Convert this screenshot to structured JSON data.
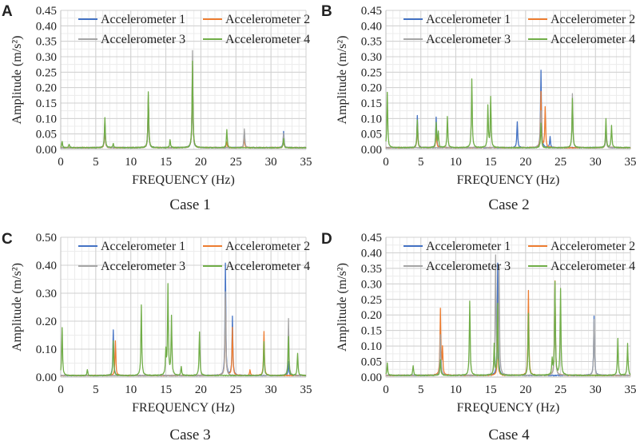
{
  "chart_data": [
    {
      "panel_label": "A",
      "caption": "Case 1",
      "type": "line",
      "xlabel": "FREQUENCY (Hz)",
      "ylabel": "Amplitude (m/s²)",
      "xlim": [
        0,
        35
      ],
      "ylim": [
        0,
        0.45
      ],
      "xticks": [
        0,
        5,
        10,
        15,
        20,
        25,
        30,
        35
      ],
      "yticks": [
        0.0,
        0.05,
        0.1,
        0.15,
        0.2,
        0.25,
        0.3,
        0.35,
        0.4,
        0.45
      ],
      "ytick_decimals": 2,
      "grid": true,
      "legend": [
        "Accelerometer 1",
        "Accelerometer 2",
        "Accelerometer 3",
        "Accelerometer 4"
      ],
      "series": [
        {
          "name": "Accelerometer 1",
          "color": "#4472C4",
          "peaks": [
            [
              6.3,
              0.08
            ],
            [
              12.5,
              0.15
            ],
            [
              18.8,
              0.25
            ],
            [
              26.2,
              0.05
            ],
            [
              31.8,
              0.052
            ]
          ]
        },
        {
          "name": "Accelerometer 2",
          "color": "#ED7D31",
          "peaks": [
            [
              6.3,
              0.07
            ],
            [
              12.5,
              0.16
            ],
            [
              18.8,
              0.26
            ],
            [
              23.7,
              0.02
            ],
            [
              26.2,
              0.03
            ],
            [
              31.8,
              0.03
            ]
          ]
        },
        {
          "name": "Accelerometer 3",
          "color": "#A5A5A5",
          "peaks": [
            [
              6.3,
              0.09
            ],
            [
              12.5,
              0.17
            ],
            [
              18.8,
              0.315
            ],
            [
              26.2,
              0.062
            ],
            [
              31.8,
              0.045
            ]
          ]
        },
        {
          "name": "Accelerometer 4",
          "color": "#70AD47",
          "peaks": [
            [
              0.2,
              0.02
            ],
            [
              1.2,
              0.012
            ],
            [
              6.3,
              0.097
            ],
            [
              7.5,
              0.012
            ],
            [
              12.5,
              0.18
            ],
            [
              15.6,
              0.025
            ],
            [
              18.8,
              0.28
            ],
            [
              23.7,
              0.058
            ],
            [
              31.8,
              0.03
            ]
          ]
        }
      ]
    },
    {
      "panel_label": "B",
      "caption": "Case 2",
      "type": "line",
      "xlabel": "FREQUENCY (Hz)",
      "ylabel": "Amplitude (m/s²)",
      "xlim": [
        0,
        35
      ],
      "ylim": [
        0,
        0.45
      ],
      "xticks": [
        0,
        5,
        10,
        15,
        20,
        25,
        30,
        35
      ],
      "yticks": [
        0.0,
        0.05,
        0.1,
        0.15,
        0.2,
        0.25,
        0.3,
        0.35,
        0.4,
        0.45
      ],
      "ytick_decimals": 2,
      "grid": true,
      "legend": [
        "Accelerometer 1",
        "Accelerometer 2",
        "Accelerometer 3",
        "Accelerometer 4"
      ],
      "series": [
        {
          "name": "Accelerometer 1",
          "color": "#4472C4",
          "peaks": [
            [
              4.5,
              0.103
            ],
            [
              7.2,
              0.098
            ],
            [
              18.8,
              0.085
            ],
            [
              22.2,
              0.252
            ],
            [
              23.5,
              0.035
            ],
            [
              31.5,
              0.07
            ]
          ]
        },
        {
          "name": "Accelerometer 2",
          "color": "#ED7D31",
          "peaks": [
            [
              4.5,
              0.08
            ],
            [
              7.2,
              0.06
            ],
            [
              22.2,
              0.18
            ],
            [
              22.8,
              0.13
            ],
            [
              31.5,
              0.06
            ]
          ]
        },
        {
          "name": "Accelerometer 3",
          "color": "#A5A5A5",
          "peaks": [
            [
              22.2,
              0.12
            ],
            [
              26.7,
              0.175
            ],
            [
              31.5,
              0.05
            ]
          ]
        },
        {
          "name": "Accelerometer 4",
          "color": "#70AD47",
          "peaks": [
            [
              0.2,
              0.18
            ],
            [
              4.5,
              0.09
            ],
            [
              7.2,
              0.08
            ],
            [
              7.5,
              0.05
            ],
            [
              8.8,
              0.1
            ],
            [
              12.3,
              0.222
            ],
            [
              14.6,
              0.133
            ],
            [
              15.0,
              0.162
            ],
            [
              22.2,
              0.08
            ],
            [
              26.7,
              0.16
            ],
            [
              31.5,
              0.095
            ],
            [
              32.3,
              0.072
            ]
          ]
        }
      ]
    },
    {
      "panel_label": "C",
      "caption": "Case 3",
      "type": "line",
      "xlabel": "FREQUENCY (Hz)",
      "ylabel": "Amplitude (m/s²)",
      "xlim": [
        0,
        35
      ],
      "ylim": [
        0,
        0.5
      ],
      "xticks": [
        0,
        5,
        10,
        15,
        20,
        25,
        30,
        35
      ],
      "yticks": [
        0.0,
        0.1,
        0.2,
        0.3,
        0.4,
        0.5
      ],
      "ytick_decimals": 2,
      "grid": true,
      "legend": [
        "Accelerometer 1",
        "Accelerometer 2",
        "Accelerometer 3",
        "Accelerometer 4"
      ],
      "series": [
        {
          "name": "Accelerometer 1",
          "color": "#4472C4",
          "peaks": [
            [
              7.5,
              0.163
            ],
            [
              23.5,
              0.4
            ],
            [
              24.5,
              0.21
            ],
            [
              32.5,
              0.05
            ]
          ]
        },
        {
          "name": "Accelerometer 2",
          "color": "#ED7D31",
          "peaks": [
            [
              7.8,
              0.125
            ],
            [
              23.5,
              0.28
            ],
            [
              24.5,
              0.17
            ],
            [
              29.0,
              0.158
            ],
            [
              27.0,
              0.02
            ]
          ]
        },
        {
          "name": "Accelerometer 3",
          "color": "#A5A5A5",
          "peaks": [
            [
              23.5,
              0.3
            ],
            [
              32.5,
              0.205
            ]
          ]
        },
        {
          "name": "Accelerometer 4",
          "color": "#70AD47",
          "peaks": [
            [
              0.2,
              0.17
            ],
            [
              3.8,
              0.02
            ],
            [
              7.5,
              0.125
            ],
            [
              11.5,
              0.253
            ],
            [
              15.0,
              0.085
            ],
            [
              15.3,
              0.322
            ],
            [
              15.8,
              0.208
            ],
            [
              17.2,
              0.03
            ],
            [
              19.8,
              0.157
            ],
            [
              29.0,
              0.12
            ],
            [
              32.5,
              0.14
            ],
            [
              33.8,
              0.08
            ]
          ]
        }
      ]
    },
    {
      "panel_label": "D",
      "caption": "Case 4",
      "type": "line",
      "xlabel": "FREQUENCY (Hz)",
      "ylabel": "Amplitude (m/s²)",
      "xlim": [
        0,
        35
      ],
      "ylim": [
        0,
        0.45
      ],
      "xticks": [
        0,
        5,
        10,
        15,
        20,
        25,
        30,
        35
      ],
      "yticks": [
        0.0,
        0.05,
        0.1,
        0.15,
        0.2,
        0.25,
        0.3,
        0.35,
        0.4,
        0.45
      ],
      "ytick_decimals": 2,
      "grid": true,
      "legend": [
        "Accelerometer 1",
        "Accelerometer 2",
        "Accelerometer 3",
        "Accelerometer 4"
      ],
      "series": [
        {
          "name": "Accelerometer 1",
          "color": "#4472C4",
          "peaks": [
            [
              7.8,
              0.16
            ],
            [
              16.0,
              0.36
            ],
            [
              29.8,
              0.192
            ]
          ]
        },
        {
          "name": "Accelerometer 2",
          "color": "#ED7D31",
          "peaks": [
            [
              7.8,
              0.212
            ],
            [
              8.1,
              0.083
            ],
            [
              16.0,
              0.15
            ],
            [
              20.4,
              0.273
            ],
            [
              24.2,
              0.305
            ]
          ]
        },
        {
          "name": "Accelerometer 3",
          "color": "#A5A5A5",
          "peaks": [
            [
              7.8,
              0.13
            ],
            [
              15.7,
              0.38
            ],
            [
              16.2,
              0.35
            ],
            [
              24.2,
              0.28
            ],
            [
              29.8,
              0.18
            ]
          ]
        },
        {
          "name": "Accelerometer 4",
          "color": "#70AD47",
          "peaks": [
            [
              0.2,
              0.04
            ],
            [
              3.9,
              0.032
            ],
            [
              7.8,
              0.05
            ],
            [
              12.0,
              0.24
            ],
            [
              15.5,
              0.1
            ],
            [
              16.0,
              0.23
            ],
            [
              20.4,
              0.2
            ],
            [
              23.8,
              0.05
            ],
            [
              24.2,
              0.3
            ],
            [
              25.0,
              0.277
            ],
            [
              33.2,
              0.12
            ],
            [
              34.6,
              0.103
            ]
          ]
        }
      ]
    }
  ]
}
